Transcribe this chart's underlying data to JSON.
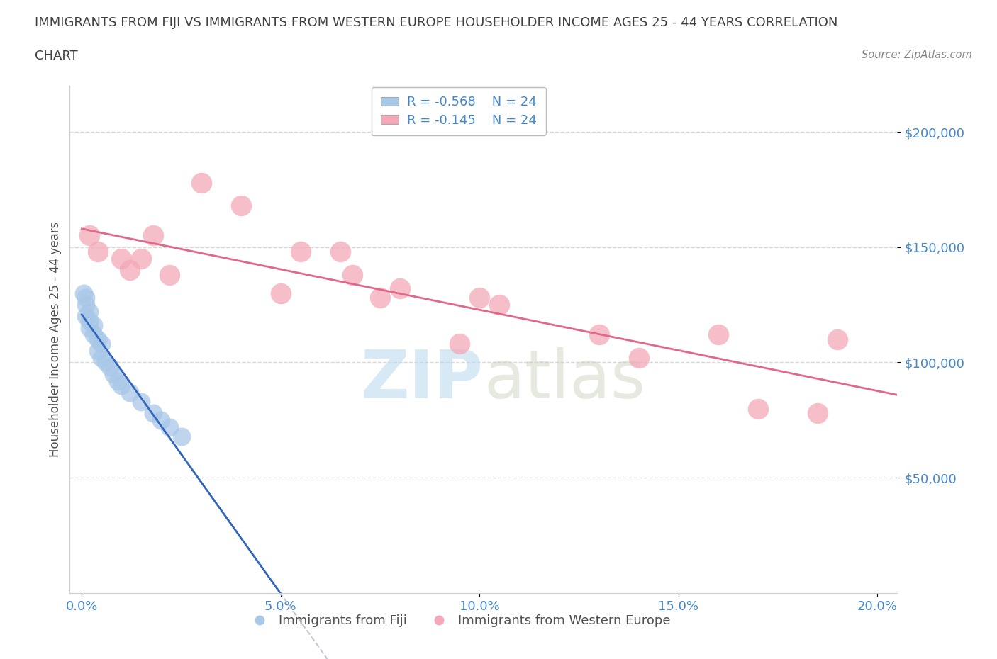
{
  "title_line1": "IMMIGRANTS FROM FIJI VS IMMIGRANTS FROM WESTERN EUROPE HOUSEHOLDER INCOME AGES 25 - 44 YEARS CORRELATION",
  "title_line2": "CHART",
  "source": "Source: ZipAtlas.com",
  "ylabel": "Householder Income Ages 25 - 44 years",
  "xlabel_ticks": [
    "0.0%",
    "5.0%",
    "10.0%",
    "15.0%",
    "20.0%"
  ],
  "xlabel_vals": [
    0.0,
    0.05,
    0.1,
    0.15,
    0.2
  ],
  "ytick_labels": [
    "$50,000",
    "$100,000",
    "$150,000",
    "$200,000"
  ],
  "ytick_vals": [
    50000,
    100000,
    150000,
    200000
  ],
  "ylim": [
    0,
    220000
  ],
  "xlim": [
    -0.003,
    0.205
  ],
  "fiji_R": "-0.568",
  "fiji_N": "24",
  "west_europe_R": "-0.145",
  "west_europe_N": "24",
  "fiji_color": "#a8c8e8",
  "west_europe_color": "#f4a8b8",
  "fiji_line_color": "#3366bb",
  "west_europe_line_color": "#e06888",
  "watermark_color": "#c8dff0",
  "grid_color": "#d8d8d8",
  "grid_style": "--",
  "bg_color": "#ffffff",
  "title_color": "#404040",
  "label_color": "#505050",
  "tick_color": "#4488cc",
  "dashed_line_color": "#c0c8d8",
  "fiji_x": [
    0.0005,
    0.001,
    0.001,
    0.001,
    0.002,
    0.002,
    0.002,
    0.003,
    0.003,
    0.003,
    0.004,
    0.004,
    0.005,
    0.005,
    0.006,
    0.007,
    0.008,
    0.009,
    0.01,
    0.011,
    0.012,
    0.015,
    0.02,
    0.025
  ],
  "fiji_y": [
    130000,
    128000,
    125000,
    120000,
    122000,
    118000,
    115000,
    116000,
    112000,
    108000,
    110000,
    105000,
    108000,
    102000,
    100000,
    98000,
    95000,
    92000,
    90000,
    88000,
    85000,
    80000,
    75000,
    70000
  ],
  "we_x": [
    0.002,
    0.004,
    0.01,
    0.012,
    0.014,
    0.016,
    0.018,
    0.02,
    0.03,
    0.04,
    0.045,
    0.05,
    0.06,
    0.065,
    0.07,
    0.08,
    0.09,
    0.1,
    0.11,
    0.13,
    0.14,
    0.16,
    0.17,
    0.19
  ],
  "we_y": [
    155000,
    148000,
    145000,
    140000,
    145000,
    155000,
    138000,
    135000,
    175000,
    165000,
    130000,
    145000,
    145000,
    138000,
    128000,
    130000,
    105000,
    125000,
    128000,
    110000,
    100000,
    110000,
    80000,
    78000
  ],
  "legend_r_color": "#4488cc",
  "legend_n_color": "#4488cc"
}
